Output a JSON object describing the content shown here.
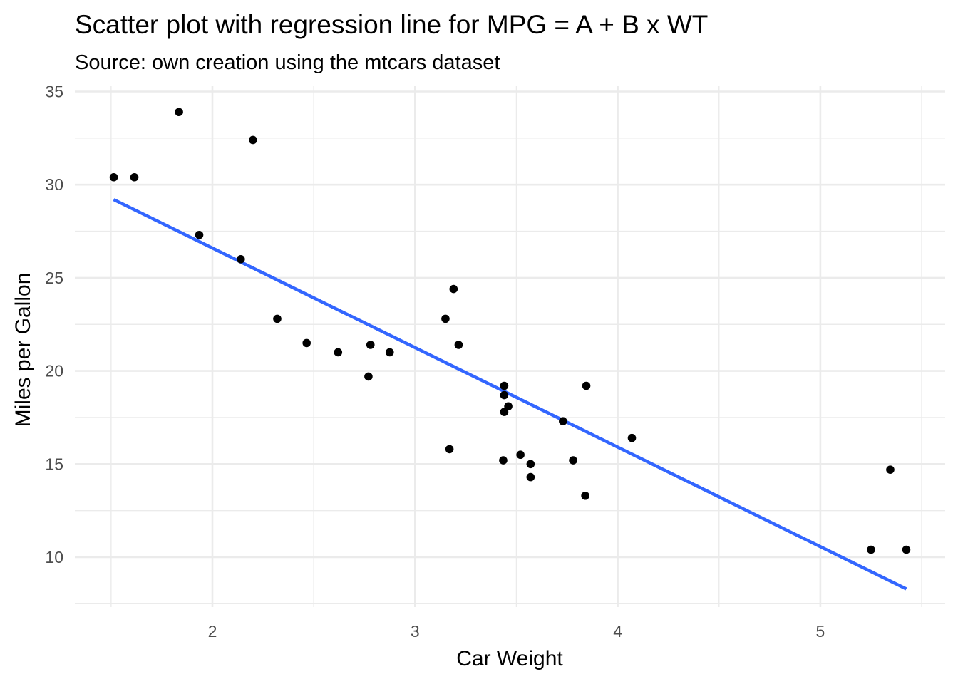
{
  "chart_data": {
    "type": "scatter",
    "title": "Scatter plot with regression line for MPG = A + B x WT",
    "subtitle": "Source: own creation using the mtcars dataset",
    "xlabel": "Car Weight",
    "ylabel": "Miles per Gallon",
    "xlim": [
      1.3,
      5.6
    ],
    "ylim": [
      7.2,
      35.5
    ],
    "x_ticks": [
      2,
      3,
      4,
      5
    ],
    "x_tick_labels": [
      "2",
      "3",
      "4",
      "5"
    ],
    "x_minor_ticks": [
      1.5,
      2.5,
      3.5,
      4.5,
      5.5
    ],
    "y_ticks": [
      10,
      15,
      20,
      25,
      30,
      35
    ],
    "y_tick_labels": [
      "10",
      "15",
      "20",
      "25",
      "30",
      "35"
    ],
    "y_minor_ticks": [
      7.5,
      12.5,
      17.5,
      22.5,
      27.5,
      32.5
    ],
    "grid": true,
    "point_color": "#000000",
    "line_color": "#3366ff",
    "points": [
      {
        "x": 2.62,
        "y": 21.0
      },
      {
        "x": 2.875,
        "y": 21.0
      },
      {
        "x": 2.32,
        "y": 22.8
      },
      {
        "x": 3.215,
        "y": 21.4
      },
      {
        "x": 3.44,
        "y": 18.7
      },
      {
        "x": 3.46,
        "y": 18.1
      },
      {
        "x": 3.57,
        "y": 14.3
      },
      {
        "x": 3.19,
        "y": 24.4
      },
      {
        "x": 3.15,
        "y": 22.8
      },
      {
        "x": 3.44,
        "y": 19.2
      },
      {
        "x": 3.44,
        "y": 17.8
      },
      {
        "x": 4.07,
        "y": 16.4
      },
      {
        "x": 3.73,
        "y": 17.3
      },
      {
        "x": 3.78,
        "y": 15.2
      },
      {
        "x": 5.25,
        "y": 10.4
      },
      {
        "x": 5.424,
        "y": 10.4
      },
      {
        "x": 5.345,
        "y": 14.7
      },
      {
        "x": 2.2,
        "y": 32.4
      },
      {
        "x": 1.615,
        "y": 30.4
      },
      {
        "x": 1.835,
        "y": 33.9
      },
      {
        "x": 2.465,
        "y": 21.5
      },
      {
        "x": 3.52,
        "y": 15.5
      },
      {
        "x": 3.435,
        "y": 15.2
      },
      {
        "x": 3.84,
        "y": 13.3
      },
      {
        "x": 3.845,
        "y": 19.2
      },
      {
        "x": 1.935,
        "y": 27.3
      },
      {
        "x": 2.14,
        "y": 26.0
      },
      {
        "x": 1.513,
        "y": 30.4
      },
      {
        "x": 3.17,
        "y": 15.8
      },
      {
        "x": 2.77,
        "y": 19.7
      },
      {
        "x": 3.57,
        "y": 15.0
      },
      {
        "x": 2.78,
        "y": 21.4
      }
    ],
    "regression": {
      "intercept": 37.285,
      "slope": -5.344,
      "x_range": [
        1.513,
        5.424
      ]
    }
  }
}
